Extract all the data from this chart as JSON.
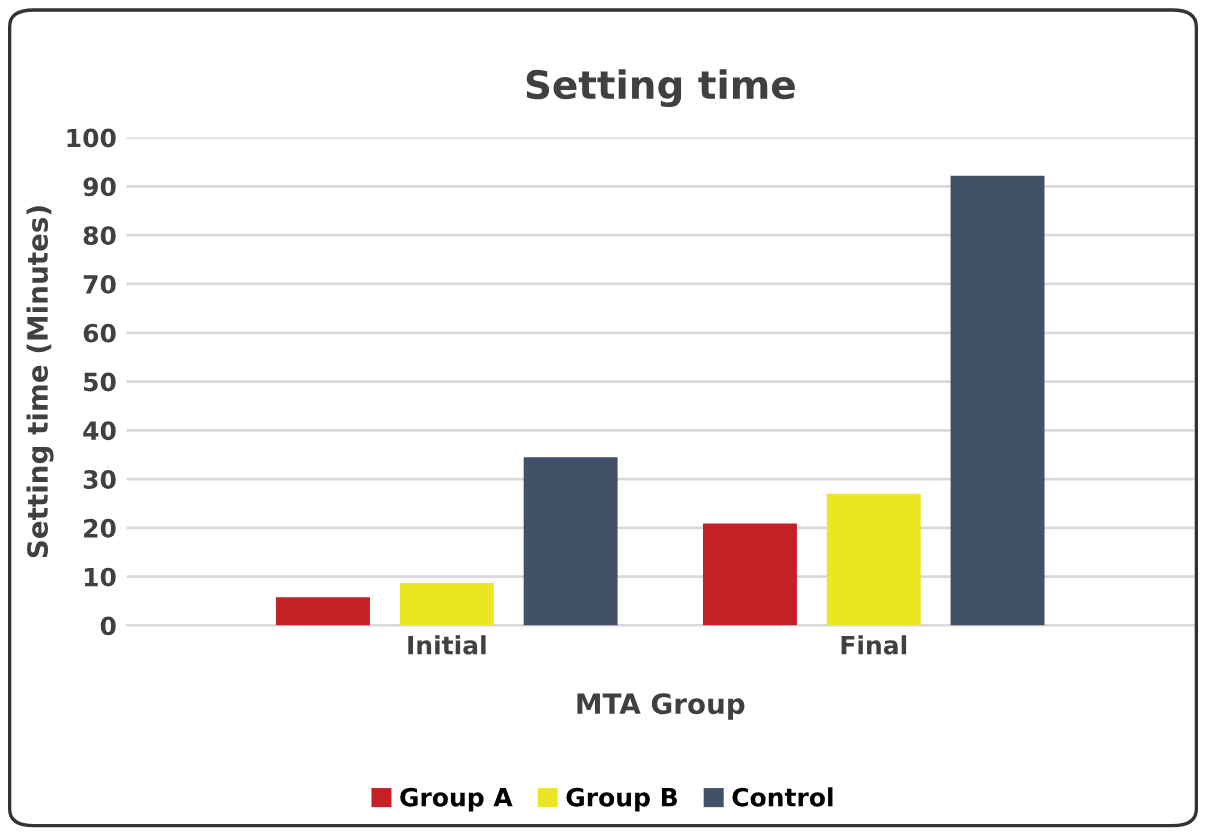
{
  "chart_data": {
    "type": "bar",
    "title": "Setting time",
    "xlabel": "MTA Group",
    "ylabel": "Setting time (Minutes)",
    "categories": [
      "Initial",
      "Final"
    ],
    "series": [
      {
        "name": "Group A",
        "color": "#c42026",
        "values": [
          5.8,
          20.9
        ]
      },
      {
        "name": "Group B",
        "color": "#ebe621",
        "values": [
          8.7,
          27.0
        ]
      },
      {
        "name": "Control",
        "color": "#405168",
        "values": [
          34.5,
          92.2
        ]
      }
    ],
    "ylim": [
      0,
      100
    ],
    "yticks": [
      0,
      10,
      20,
      30,
      40,
      50,
      60,
      70,
      80,
      90,
      100
    ],
    "grid": "y",
    "legend": "bottom"
  }
}
